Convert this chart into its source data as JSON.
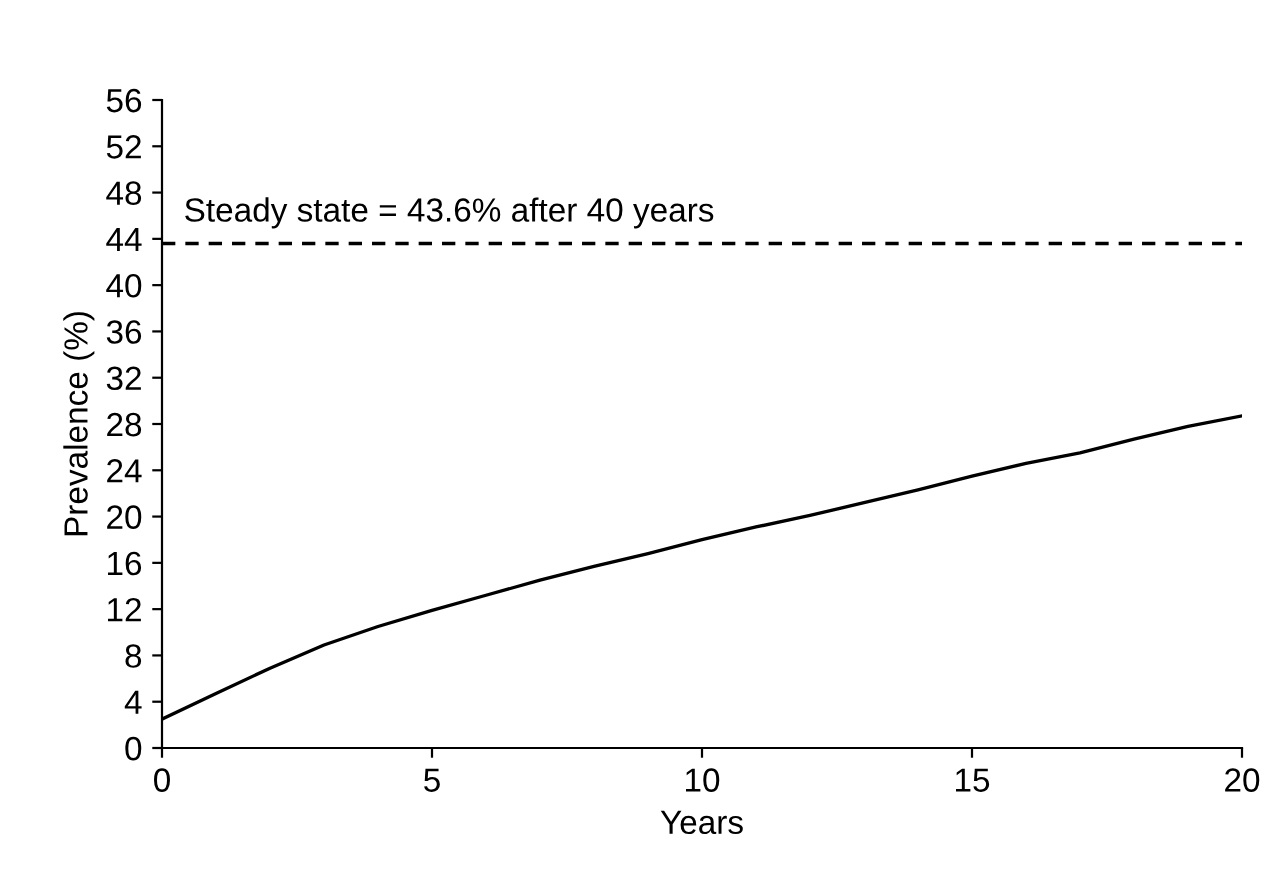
{
  "chart_data": {
    "type": "line",
    "xlabel": "Years",
    "ylabel": "Prevalence (%)",
    "x": [
      0,
      1,
      2,
      3,
      4,
      5,
      6,
      7,
      8,
      9,
      10,
      11,
      12,
      13,
      14,
      15,
      16,
      17,
      18,
      19,
      20
    ],
    "series": [
      {
        "color": "#000000",
        "values": [
          2.5,
          4.7,
          6.9,
          8.9,
          10.5,
          11.9,
          13.2,
          14.5,
          15.7,
          16.8,
          18.0,
          19.1,
          20.1,
          21.2,
          22.3,
          23.5,
          24.6,
          25.5,
          26.7,
          27.8,
          28.7
        ]
      }
    ],
    "xlim": [
      0,
      20
    ],
    "xticks": [
      0,
      5,
      10,
      15,
      20
    ],
    "ylim": [
      0,
      56
    ],
    "yticks": [
      0,
      4,
      8,
      12,
      16,
      20,
      24,
      28,
      32,
      36,
      40,
      44,
      48,
      52,
      56
    ],
    "ref_lines": [
      {
        "axis": "y",
        "value": 43.6,
        "label": "Steady state = 43.6% after 40 years",
        "color": "#000000",
        "line_style": "dashed"
      }
    ],
    "grid": false,
    "legend": false
  }
}
